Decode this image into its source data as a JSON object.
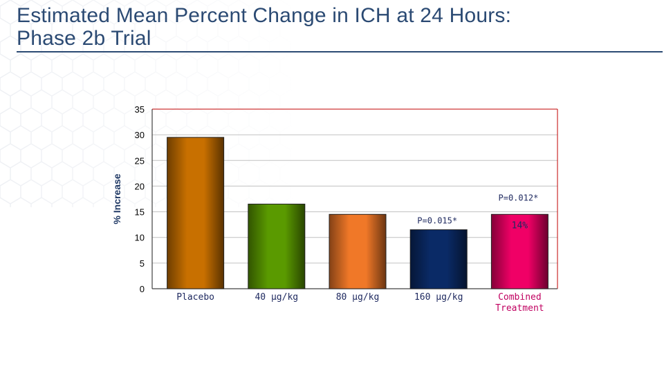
{
  "slide": {
    "title_line1": "Estimated Mean Percent Change in ICH at 24 Hours:",
    "title_line2": "Phase 2b Trial"
  },
  "colors": {
    "title": "#2b4a73",
    "grid": "#c0c0c0",
    "plot_border": "#c00000",
    "category_text": "#1f2a60",
    "combined_text": "#c00060"
  },
  "chart_data": {
    "type": "bar",
    "title": "",
    "xlabel": "",
    "ylabel": "% Increase",
    "ylim": [
      0,
      35
    ],
    "yticks": [
      0,
      5,
      10,
      15,
      20,
      25,
      30,
      35
    ],
    "grid": true,
    "legend": "none",
    "categories": [
      "Placebo",
      "40 µg/kg",
      "80 µg/kg",
      "160 µg/kg",
      "Combined Treatment"
    ],
    "values": [
      29.5,
      16.5,
      14.5,
      11.5,
      14.5
    ],
    "bar_colors": [
      "#c87000",
      "#5a9a00",
      "#f07828",
      "#0a2a66",
      "#f00066"
    ],
    "data_labels": [
      "",
      "",
      "",
      "",
      "14%"
    ],
    "annotations": [
      {
        "category": "160 µg/kg",
        "text": "P=0.015*"
      },
      {
        "category": "Combined Treatment",
        "text": "P=0.012*"
      }
    ]
  }
}
